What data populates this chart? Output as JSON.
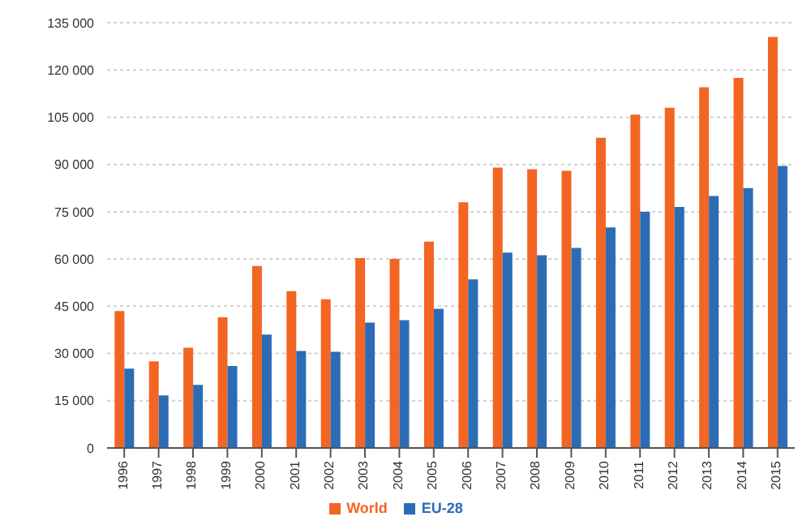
{
  "chart_data": {
    "type": "bar",
    "categories": [
      "1996",
      "1997",
      "1998",
      "1999",
      "2000",
      "2001",
      "2002",
      "2003",
      "2004",
      "2005",
      "2006",
      "2007",
      "2008",
      "2009",
      "2010",
      "2011",
      "2012",
      "2013",
      "2014",
      "2015"
    ],
    "series": [
      {
        "name": "World",
        "color": "#f26522",
        "values": [
          43500,
          27500,
          31800,
          41500,
          57800,
          49800,
          47200,
          60300,
          60000,
          65500,
          78000,
          89000,
          88500,
          88000,
          98500,
          105800,
          108000,
          114500,
          117500,
          130500
        ]
      },
      {
        "name": "EU-28",
        "color": "#2b6cb5",
        "values": [
          25200,
          16700,
          20000,
          26000,
          36000,
          30800,
          30500,
          39800,
          40600,
          44200,
          53500,
          62000,
          61200,
          63500,
          70000,
          75000,
          76500,
          80000,
          82500,
          89500
        ]
      }
    ],
    "ylim": [
      0,
      135000
    ],
    "yticks": [
      {
        "value": 0,
        "label": "0"
      },
      {
        "value": 15000,
        "label": "15 000"
      },
      {
        "value": 30000,
        "label": "30 000"
      },
      {
        "value": 45000,
        "label": "45 000"
      },
      {
        "value": 60000,
        "label": "60 000"
      },
      {
        "value": 75000,
        "label": "75 000"
      },
      {
        "value": 90000,
        "label": "90 000"
      },
      {
        "value": 105000,
        "label": "105 000"
      },
      {
        "value": 120000,
        "label": "120 000"
      },
      {
        "value": 135000,
        "label": "135 000"
      }
    ],
    "grid": "y",
    "legend": "bottom"
  }
}
